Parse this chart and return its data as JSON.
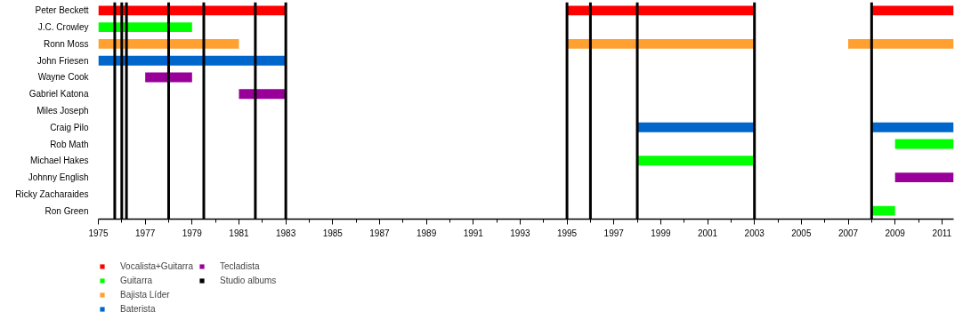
{
  "chart_data": {
    "type": "bar",
    "orientation": "horizontal",
    "categories": [
      "Peter Beckett",
      "J.C. Crowley",
      "Ronn Moss",
      "John Friesen",
      "Wayne Cook",
      "Gabriel Katona",
      "Miles Joseph",
      "Craig Pilo",
      "Rob Math",
      "Michael Hakes",
      "Johnny English",
      "Ricky Zacharaides",
      "Ron Green"
    ],
    "series": [
      {
        "name": "Vocalista+Guitarra",
        "color": "#ff0000",
        "base": [
          1975,
          null,
          null,
          null,
          null,
          null,
          null,
          null,
          null,
          null,
          null,
          null,
          null
        ],
        "values": [
          8,
          null,
          null,
          null,
          null,
          null,
          null,
          null,
          null,
          null,
          null,
          null,
          null
        ]
      },
      {
        "color": "#ff0000",
        "base": [
          1995,
          null,
          null,
          null,
          null,
          null,
          null,
          null,
          null,
          null,
          null,
          null,
          null
        ],
        "values": [
          8,
          null,
          null,
          null,
          null,
          null,
          null,
          null,
          null,
          null,
          null,
          null,
          null
        ]
      },
      {
        "color": "#ff0000",
        "base": [
          2008,
          null,
          null,
          null,
          null,
          null,
          null,
          null,
          null,
          null,
          null,
          null,
          null
        ],
        "values": [
          3.5,
          null,
          null,
          null,
          null,
          null,
          null,
          null,
          null,
          null,
          null,
          null,
          null
        ]
      },
      {
        "name": "Guitarra",
        "color": "#00ff00",
        "base": [
          null,
          1975,
          null,
          null,
          null,
          null,
          null,
          null,
          2009,
          1998,
          null,
          null,
          2008
        ],
        "values": [
          null,
          4,
          null,
          null,
          null,
          null,
          null,
          null,
          2.5,
          5,
          null,
          null,
          1
        ]
      },
      {
        "name": "Bajista Líder",
        "color": "#ffa030",
        "base": [
          null,
          null,
          1975,
          null,
          null,
          null,
          null,
          null,
          null,
          null,
          null,
          null,
          null
        ],
        "values": [
          null,
          null,
          6,
          null,
          null,
          null,
          null,
          null,
          null,
          null,
          null,
          null,
          null
        ]
      },
      {
        "color": "#ffa030",
        "base": [
          null,
          null,
          1995,
          null,
          null,
          null,
          null,
          null,
          null,
          null,
          null,
          null,
          null
        ],
        "values": [
          null,
          null,
          8,
          null,
          null,
          null,
          null,
          null,
          null,
          null,
          null,
          null,
          null
        ]
      },
      {
        "color": "#ffa030",
        "base": [
          null,
          null,
          2007,
          null,
          null,
          null,
          null,
          null,
          null,
          null,
          null,
          null,
          null
        ],
        "values": [
          null,
          null,
          4.5,
          null,
          null,
          null,
          null,
          null,
          null,
          null,
          null,
          null,
          null
        ]
      },
      {
        "name": "Baterista",
        "color": "#0066cc",
        "base": [
          null,
          null,
          null,
          1975,
          null,
          null,
          null,
          1998,
          null,
          null,
          null,
          null,
          null
        ],
        "values": [
          null,
          null,
          null,
          8,
          null,
          null,
          null,
          5,
          null,
          null,
          null,
          null,
          null
        ]
      },
      {
        "color": "#0066cc",
        "base": [
          null,
          null,
          null,
          null,
          null,
          null,
          null,
          2008,
          null,
          null,
          null,
          null,
          null
        ],
        "values": [
          null,
          null,
          null,
          null,
          null,
          null,
          null,
          3.5,
          null,
          null,
          null,
          null,
          null
        ]
      },
      {
        "name": "Tecladista",
        "color": "#990099",
        "base": [
          null,
          null,
          null,
          null,
          1977,
          1981,
          null,
          null,
          null,
          null,
          2009,
          null,
          null
        ],
        "values": [
          null,
          null,
          null,
          null,
          2,
          2,
          null,
          null,
          null,
          null,
          2.5,
          null,
          null
        ]
      }
    ],
    "ref_lines": [
      {
        "axis": "x",
        "value": 1975.7,
        "label": "Studio albums",
        "color": "#000000"
      },
      {
        "axis": "x",
        "value": 1976,
        "color": "#000000"
      },
      {
        "axis": "x",
        "value": 1976.2,
        "color": "#000000"
      },
      {
        "axis": "x",
        "value": 1978,
        "color": "#000000"
      },
      {
        "axis": "x",
        "value": 1979.5,
        "color": "#000000"
      },
      {
        "axis": "x",
        "value": 1981.7,
        "color": "#000000"
      },
      {
        "axis": "x",
        "value": 1983,
        "color": "#000000"
      },
      {
        "axis": "x",
        "value": 1995,
        "color": "#000000"
      },
      {
        "axis": "x",
        "value": 1996,
        "color": "#000000"
      },
      {
        "axis": "x",
        "value": 1998,
        "color": "#000000"
      },
      {
        "axis": "x",
        "value": 2003,
        "color": "#000000"
      },
      {
        "axis": "x",
        "value": 2008,
        "color": "#000000"
      }
    ],
    "xlim": [
      1975,
      2011.5
    ],
    "xticks": [
      1975,
      1977,
      1979,
      1981,
      1983,
      1985,
      1987,
      1989,
      1991,
      1993,
      1995,
      1997,
      1999,
      2001,
      2003,
      2005,
      2007,
      2009,
      2011
    ],
    "grid": false,
    "legend": "bottom"
  }
}
